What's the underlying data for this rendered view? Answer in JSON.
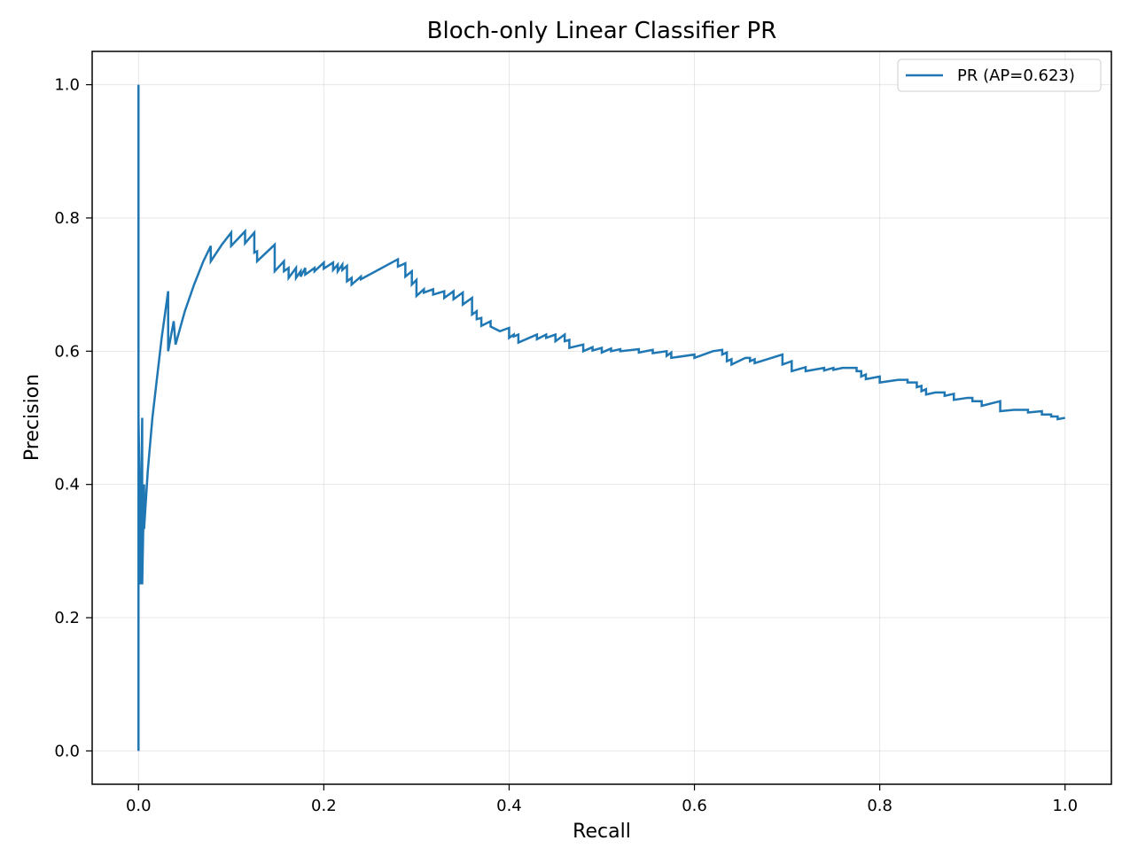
{
  "chart_data": {
    "type": "line",
    "title": "Bloch-only Linear Classifier PR",
    "xlabel": "Recall",
    "ylabel": "Precision",
    "xlim": [
      -0.05,
      1.05
    ],
    "ylim": [
      -0.05,
      1.05
    ],
    "xticks": [
      0.0,
      0.2,
      0.4,
      0.6,
      0.8,
      1.0
    ],
    "yticks": [
      0.0,
      0.2,
      0.4,
      0.6,
      0.8,
      1.0
    ],
    "xtick_labels": [
      "0.0",
      "0.2",
      "0.4",
      "0.6",
      "0.8",
      "1.0"
    ],
    "ytick_labels": [
      "0.0",
      "0.2",
      "0.4",
      "0.6",
      "0.8",
      "1.0"
    ],
    "grid": true,
    "legend_position": "top-right",
    "series": [
      {
        "name": "PR (AP=0.623)",
        "color": "#1f77b4",
        "points": [
          [
            0.0,
            0.0
          ],
          [
            0.0,
            1.0
          ],
          [
            0.0,
            0.5
          ],
          [
            0.002,
            0.333
          ],
          [
            0.002,
            0.25
          ],
          [
            0.004,
            0.5
          ],
          [
            0.004,
            0.25
          ],
          [
            0.006,
            0.4
          ],
          [
            0.006,
            0.333
          ],
          [
            0.01,
            0.42
          ],
          [
            0.015,
            0.5
          ],
          [
            0.02,
            0.56
          ],
          [
            0.025,
            0.62
          ],
          [
            0.032,
            0.69
          ],
          [
            0.032,
            0.6
          ],
          [
            0.038,
            0.645
          ],
          [
            0.04,
            0.61
          ],
          [
            0.05,
            0.66
          ],
          [
            0.06,
            0.7
          ],
          [
            0.07,
            0.735
          ],
          [
            0.078,
            0.758
          ],
          [
            0.078,
            0.735
          ],
          [
            0.09,
            0.76
          ],
          [
            0.1,
            0.778
          ],
          [
            0.1,
            0.758
          ],
          [
            0.115,
            0.78
          ],
          [
            0.115,
            0.762
          ],
          [
            0.125,
            0.778
          ],
          [
            0.125,
            0.748
          ],
          [
            0.128,
            0.75
          ],
          [
            0.128,
            0.735
          ],
          [
            0.147,
            0.76
          ],
          [
            0.147,
            0.72
          ],
          [
            0.157,
            0.735
          ],
          [
            0.157,
            0.72
          ],
          [
            0.162,
            0.725
          ],
          [
            0.162,
            0.71
          ],
          [
            0.17,
            0.725
          ],
          [
            0.17,
            0.71
          ],
          [
            0.175,
            0.72
          ],
          [
            0.175,
            0.712
          ],
          [
            0.18,
            0.725
          ],
          [
            0.18,
            0.715
          ],
          [
            0.19,
            0.725
          ],
          [
            0.19,
            0.72
          ],
          [
            0.2,
            0.733
          ],
          [
            0.2,
            0.724
          ],
          [
            0.21,
            0.733
          ],
          [
            0.21,
            0.722
          ],
          [
            0.215,
            0.73
          ],
          [
            0.215,
            0.72
          ],
          [
            0.22,
            0.73
          ],
          [
            0.22,
            0.722
          ],
          [
            0.225,
            0.728
          ],
          [
            0.225,
            0.705
          ],
          [
            0.23,
            0.71
          ],
          [
            0.23,
            0.7
          ],
          [
            0.24,
            0.712
          ],
          [
            0.24,
            0.708
          ],
          [
            0.28,
            0.738
          ],
          [
            0.28,
            0.727
          ],
          [
            0.288,
            0.732
          ],
          [
            0.288,
            0.712
          ],
          [
            0.295,
            0.72
          ],
          [
            0.295,
            0.7
          ],
          [
            0.3,
            0.707
          ],
          [
            0.3,
            0.683
          ],
          [
            0.308,
            0.693
          ],
          [
            0.308,
            0.688
          ],
          [
            0.318,
            0.693
          ],
          [
            0.318,
            0.685
          ],
          [
            0.33,
            0.69
          ],
          [
            0.33,
            0.68
          ],
          [
            0.34,
            0.69
          ],
          [
            0.34,
            0.678
          ],
          [
            0.35,
            0.688
          ],
          [
            0.35,
            0.67
          ],
          [
            0.36,
            0.68
          ],
          [
            0.36,
            0.655
          ],
          [
            0.365,
            0.66
          ],
          [
            0.365,
            0.648
          ],
          [
            0.37,
            0.65
          ],
          [
            0.37,
            0.638
          ],
          [
            0.38,
            0.645
          ],
          [
            0.38,
            0.637
          ],
          [
            0.39,
            0.63
          ],
          [
            0.4,
            0.635
          ],
          [
            0.4,
            0.62
          ],
          [
            0.405,
            0.625
          ],
          [
            0.405,
            0.622
          ],
          [
            0.41,
            0.625
          ],
          [
            0.41,
            0.613
          ],
          [
            0.43,
            0.625
          ],
          [
            0.43,
            0.618
          ],
          [
            0.44,
            0.625
          ],
          [
            0.44,
            0.62
          ],
          [
            0.45,
            0.625
          ],
          [
            0.45,
            0.615
          ],
          [
            0.46,
            0.625
          ],
          [
            0.46,
            0.615
          ],
          [
            0.465,
            0.617
          ],
          [
            0.465,
            0.605
          ],
          [
            0.48,
            0.61
          ],
          [
            0.48,
            0.6
          ],
          [
            0.49,
            0.606
          ],
          [
            0.49,
            0.601
          ],
          [
            0.5,
            0.605
          ],
          [
            0.5,
            0.598
          ],
          [
            0.51,
            0.604
          ],
          [
            0.51,
            0.6
          ],
          [
            0.52,
            0.603
          ],
          [
            0.52,
            0.6
          ],
          [
            0.54,
            0.603
          ],
          [
            0.54,
            0.598
          ],
          [
            0.555,
            0.602
          ],
          [
            0.555,
            0.597
          ],
          [
            0.57,
            0.6
          ],
          [
            0.57,
            0.593
          ],
          [
            0.575,
            0.598
          ],
          [
            0.575,
            0.59
          ],
          [
            0.6,
            0.595
          ],
          [
            0.6,
            0.59
          ],
          [
            0.62,
            0.6
          ],
          [
            0.63,
            0.602
          ],
          [
            0.63,
            0.595
          ],
          [
            0.635,
            0.598
          ],
          [
            0.635,
            0.585
          ],
          [
            0.64,
            0.588
          ],
          [
            0.64,
            0.58
          ],
          [
            0.655,
            0.59
          ],
          [
            0.66,
            0.59
          ],
          [
            0.66,
            0.585
          ],
          [
            0.665,
            0.588
          ],
          [
            0.665,
            0.582
          ],
          [
            0.695,
            0.595
          ],
          [
            0.695,
            0.58
          ],
          [
            0.705,
            0.585
          ],
          [
            0.705,
            0.57
          ],
          [
            0.72,
            0.576
          ],
          [
            0.72,
            0.57
          ],
          [
            0.74,
            0.575
          ],
          [
            0.74,
            0.571
          ],
          [
            0.75,
            0.575
          ],
          [
            0.75,
            0.572
          ],
          [
            0.76,
            0.575
          ],
          [
            0.775,
            0.575
          ],
          [
            0.775,
            0.57
          ],
          [
            0.78,
            0.57
          ],
          [
            0.78,
            0.562
          ],
          [
            0.785,
            0.565
          ],
          [
            0.785,
            0.558
          ],
          [
            0.8,
            0.562
          ],
          [
            0.8,
            0.553
          ],
          [
            0.82,
            0.557
          ],
          [
            0.83,
            0.557
          ],
          [
            0.83,
            0.553
          ],
          [
            0.84,
            0.553
          ],
          [
            0.84,
            0.546
          ],
          [
            0.845,
            0.548
          ],
          [
            0.845,
            0.54
          ],
          [
            0.85,
            0.543
          ],
          [
            0.85,
            0.535
          ],
          [
            0.86,
            0.538
          ],
          [
            0.87,
            0.538
          ],
          [
            0.87,
            0.533
          ],
          [
            0.88,
            0.536
          ],
          [
            0.88,
            0.527
          ],
          [
            0.895,
            0.53
          ],
          [
            0.9,
            0.53
          ],
          [
            0.9,
            0.525
          ],
          [
            0.91,
            0.525
          ],
          [
            0.91,
            0.518
          ],
          [
            0.93,
            0.525
          ],
          [
            0.93,
            0.51
          ],
          [
            0.945,
            0.512
          ],
          [
            0.96,
            0.512
          ],
          [
            0.96,
            0.508
          ],
          [
            0.975,
            0.51
          ],
          [
            0.975,
            0.505
          ],
          [
            0.985,
            0.505
          ],
          [
            0.985,
            0.502
          ],
          [
            0.992,
            0.502
          ],
          [
            0.992,
            0.498
          ],
          [
            1.0,
            0.5
          ]
        ]
      }
    ]
  }
}
